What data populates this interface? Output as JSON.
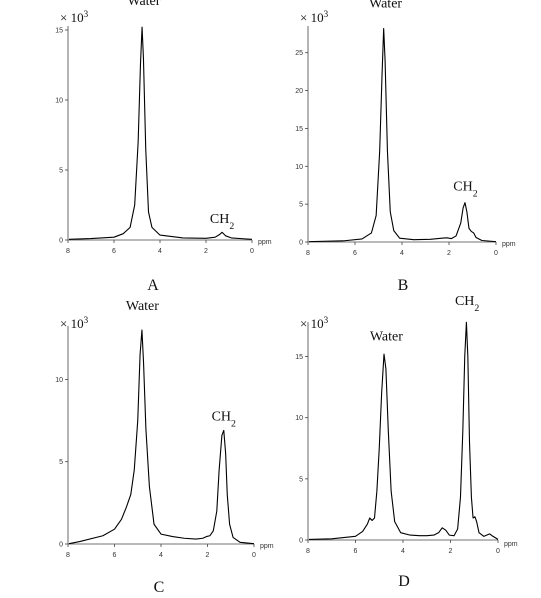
{
  "chart_data": [
    {
      "panel": "A",
      "type": "line",
      "xlabel": "ppm",
      "y_multiplier": "× 10³",
      "xlim": [
        8,
        0
      ],
      "ylim": [
        0,
        15
      ],
      "x_ticks": [
        8,
        6,
        4,
        2,
        0
      ],
      "y_ticks": [
        0,
        5,
        10,
        15
      ],
      "annotations": [
        {
          "text": "Water",
          "x": 4.7,
          "y": 16.8
        },
        {
          "text": "CH₂",
          "x": 1.3,
          "y": 1.2
        }
      ],
      "series": [
        {
          "points": [
            [
              8.3,
              0.05
            ],
            [
              7,
              0.1
            ],
            [
              6,
              0.2
            ],
            [
              5.6,
              0.45
            ],
            [
              5.3,
              0.9
            ],
            [
              5.1,
              2.5
            ],
            [
              4.95,
              7
            ],
            [
              4.85,
              12.5
            ],
            [
              4.78,
              15.2
            ],
            [
              4.72,
              13
            ],
            [
              4.62,
              6.5
            ],
            [
              4.5,
              2
            ],
            [
              4.35,
              0.9
            ],
            [
              4,
              0.35
            ],
            [
              3,
              0.15
            ],
            [
              2,
              0.12
            ],
            [
              1.6,
              0.2
            ],
            [
              1.4,
              0.4
            ],
            [
              1.3,
              0.55
            ],
            [
              1.15,
              0.3
            ],
            [
              0.9,
              0.15
            ],
            [
              0.3,
              0.08
            ],
            [
              0,
              0.05
            ]
          ]
        }
      ]
    },
    {
      "panel": "B",
      "type": "line",
      "xlabel": "ppm",
      "y_multiplier": "× 10³",
      "xlim": [
        8,
        0
      ],
      "ylim": [
        0,
        28
      ],
      "x_ticks": [
        8,
        6,
        4,
        2,
        0
      ],
      "y_ticks": [
        0,
        5,
        10,
        15,
        20,
        25
      ],
      "annotations": [
        {
          "text": "Water",
          "x": 4.7,
          "y": 31
        },
        {
          "text": "CH₂",
          "x": 1.3,
          "y": 6.8
        }
      ],
      "series": [
        {
          "points": [
            [
              8.3,
              0.05
            ],
            [
              6.5,
              0.15
            ],
            [
              5.7,
              0.4
            ],
            [
              5.3,
              1.2
            ],
            [
              5.1,
              3.5
            ],
            [
              4.95,
              12
            ],
            [
              4.85,
              22
            ],
            [
              4.78,
              28.2
            ],
            [
              4.72,
              24
            ],
            [
              4.62,
              12
            ],
            [
              4.5,
              4
            ],
            [
              4.35,
              1.5
            ],
            [
              4.1,
              0.5
            ],
            [
              3.5,
              0.3
            ],
            [
              2.8,
              0.35
            ],
            [
              2.3,
              0.5
            ],
            [
              2.1,
              0.55
            ],
            [
              1.9,
              0.45
            ],
            [
              1.7,
              0.8
            ],
            [
              1.5,
              2.5
            ],
            [
              1.4,
              4.5
            ],
            [
              1.32,
              5.2
            ],
            [
              1.24,
              4
            ],
            [
              1.15,
              1.8
            ],
            [
              1.05,
              1.4
            ],
            [
              0.95,
              1.2
            ],
            [
              0.85,
              0.6
            ],
            [
              0.6,
              0.2
            ],
            [
              0,
              0.05
            ]
          ]
        }
      ]
    },
    {
      "panel": "C",
      "type": "line",
      "xlabel": "ppm",
      "y_multiplier": "× 10³",
      "xlim": [
        8,
        0
      ],
      "ylim": [
        0,
        13
      ],
      "x_ticks": [
        8,
        6,
        4,
        2,
        0
      ],
      "y_ticks": [
        0,
        5,
        10
      ],
      "annotations": [
        {
          "text": "Water",
          "x": 4.8,
          "y": 14.2
        },
        {
          "text": "CH₂",
          "x": 1.3,
          "y": 7.5
        }
      ],
      "series": [
        {
          "points": [
            [
              8.3,
              0.02
            ],
            [
              7.5,
              0.15
            ],
            [
              6.5,
              0.5
            ],
            [
              6,
              0.9
            ],
            [
              5.7,
              1.5
            ],
            [
              5.5,
              2.2
            ],
            [
              5.3,
              3
            ],
            [
              5.15,
              4.5
            ],
            [
              5,
              7.5
            ],
            [
              4.9,
              11.5
            ],
            [
              4.82,
              13
            ],
            [
              4.75,
              11
            ],
            [
              4.65,
              7
            ],
            [
              4.5,
              3.5
            ],
            [
              4.3,
              1.2
            ],
            [
              4,
              0.6
            ],
            [
              3.5,
              0.45
            ],
            [
              3,
              0.35
            ],
            [
              2.5,
              0.3
            ],
            [
              2.2,
              0.35
            ],
            [
              2.05,
              0.45
            ],
            [
              1.9,
              0.5
            ],
            [
              1.75,
              0.8
            ],
            [
              1.6,
              2
            ],
            [
              1.5,
              4.5
            ],
            [
              1.38,
              6.6
            ],
            [
              1.3,
              6.9
            ],
            [
              1.22,
              5.5
            ],
            [
              1.15,
              3
            ],
            [
              1.05,
              1.2
            ],
            [
              0.9,
              0.4
            ],
            [
              0.6,
              0.1
            ],
            [
              0,
              0.02
            ]
          ]
        }
      ]
    },
    {
      "panel": "D",
      "type": "line",
      "xlabel": "ppm",
      "y_multiplier": "× 10³",
      "xlim": [
        8,
        0
      ],
      "ylim": [
        0,
        17.5
      ],
      "x_ticks": [
        8,
        6,
        4,
        2,
        0
      ],
      "y_ticks": [
        0,
        5,
        10,
        15
      ],
      "annotations": [
        {
          "text": "Water",
          "x": 4.7,
          "y": 16.3
        },
        {
          "text": "CH₂",
          "x": 1.3,
          "y": 19.2
        }
      ],
      "series": [
        {
          "points": [
            [
              8.3,
              0.05
            ],
            [
              7,
              0.1
            ],
            [
              6,
              0.3
            ],
            [
              5.7,
              0.7
            ],
            [
              5.5,
              1.3
            ],
            [
              5.4,
              1.8
            ],
            [
              5.3,
              1.6
            ],
            [
              5.2,
              1.8
            ],
            [
              5.1,
              4
            ],
            [
              5,
              7.5
            ],
            [
              4.9,
              12
            ],
            [
              4.8,
              15.2
            ],
            [
              4.72,
              14
            ],
            [
              4.62,
              9
            ],
            [
              4.5,
              4
            ],
            [
              4.35,
              1.5
            ],
            [
              4.1,
              0.6
            ],
            [
              3.7,
              0.4
            ],
            [
              3.3,
              0.35
            ],
            [
              3,
              0.35
            ],
            [
              2.7,
              0.4
            ],
            [
              2.5,
              0.6
            ],
            [
              2.35,
              1
            ],
            [
              2.2,
              0.8
            ],
            [
              2.05,
              0.4
            ],
            [
              1.85,
              0.35
            ],
            [
              1.7,
              0.9
            ],
            [
              1.58,
              3.5
            ],
            [
              1.48,
              9
            ],
            [
              1.4,
              15
            ],
            [
              1.33,
              17.8
            ],
            [
              1.27,
              15
            ],
            [
              1.2,
              8
            ],
            [
              1.12,
              3.5
            ],
            [
              1.05,
              1.8
            ],
            [
              0.97,
              1.9
            ],
            [
              0.9,
              1.5
            ],
            [
              0.8,
              0.6
            ],
            [
              0.6,
              0.3
            ],
            [
              0.35,
              0.5
            ],
            [
              0.25,
              0.35
            ],
            [
              0,
              0.05
            ]
          ]
        }
      ]
    }
  ]
}
